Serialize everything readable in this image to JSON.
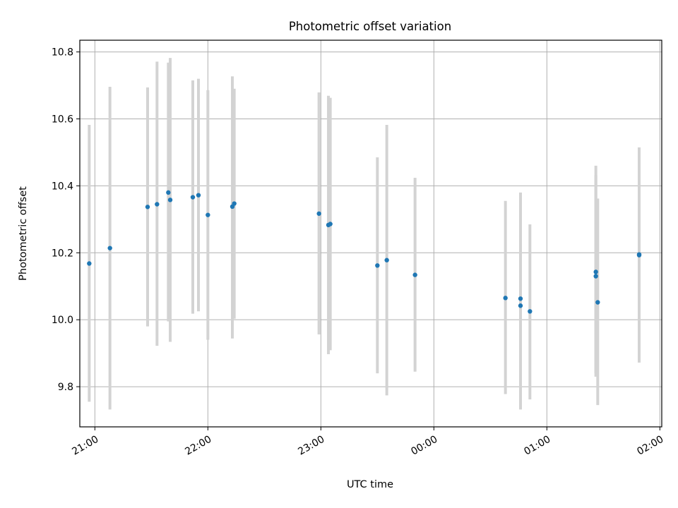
{
  "chart_data": {
    "type": "scatter",
    "title": "Photometric offset variation",
    "xlabel": "UTC time",
    "ylabel": "Photometric offset",
    "grid": true,
    "x_ticks": [
      "21:00",
      "22:00",
      "23:00",
      "00:00",
      "01:00",
      "02:00"
    ],
    "x_tick_values": [
      0,
      60,
      120,
      180,
      240,
      300
    ],
    "y_ticks": [
      "9.8",
      "10.0",
      "10.2",
      "10.4",
      "10.6",
      "10.8"
    ],
    "y_tick_values": [
      9.8,
      10.0,
      10.2,
      10.4,
      10.6,
      10.8
    ],
    "xlim": [
      "20:52",
      "02:01"
    ],
    "ylim": [
      9.68,
      10.835
    ],
    "colors": {
      "points": "#1f77b4",
      "errorbars": "#d3d3d3",
      "grid": "#b0b0b0"
    },
    "series": [
      {
        "points": [
          {
            "x": "20:57",
            "y": 10.168,
            "ylow": 9.755,
            "yhigh": 10.582
          },
          {
            "x": "21:08",
            "y": 10.214,
            "ylow": 9.732,
            "yhigh": 10.696
          },
          {
            "x": "21:28",
            "y": 10.337,
            "ylow": 9.98,
            "yhigh": 10.694
          },
          {
            "x": "21:33",
            "y": 10.345,
            "ylow": 9.922,
            "yhigh": 10.771
          },
          {
            "x": "21:39",
            "y": 10.38,
            "ylow": 9.995,
            "yhigh": 10.768
          },
          {
            "x": "21:40",
            "y": 10.358,
            "ylow": 9.934,
            "yhigh": 10.782
          },
          {
            "x": "21:52",
            "y": 10.366,
            "ylow": 10.018,
            "yhigh": 10.715
          },
          {
            "x": "21:55",
            "y": 10.372,
            "ylow": 10.025,
            "yhigh": 10.72
          },
          {
            "x": "22:00",
            "y": 10.313,
            "ylow": 9.94,
            "yhigh": 10.686
          },
          {
            "x": "22:13",
            "y": 10.338,
            "ylow": 9.944,
            "yhigh": 10.727
          },
          {
            "x": "22:14",
            "y": 10.347,
            "ylow": 10.003,
            "yhigh": 10.69
          },
          {
            "x": "22:59",
            "y": 10.317,
            "ylow": 9.956,
            "yhigh": 10.679
          },
          {
            "x": "23:04",
            "y": 10.283,
            "ylow": 9.897,
            "yhigh": 10.669
          },
          {
            "x": "23:05",
            "y": 10.286,
            "ylow": 9.909,
            "yhigh": 10.663
          },
          {
            "x": "23:30",
            "y": 10.162,
            "ylow": 9.84,
            "yhigh": 10.485
          },
          {
            "x": "23:35",
            "y": 10.178,
            "ylow": 9.774,
            "yhigh": 10.582
          },
          {
            "x": "23:50",
            "y": 10.134,
            "ylow": 9.845,
            "yhigh": 10.424
          },
          {
            "x": "00:38",
            "y": 10.065,
            "ylow": 9.778,
            "yhigh": 10.355
          },
          {
            "x": "00:46",
            "y": 10.063,
            "ylow": 9.76,
            "yhigh": 10.38
          },
          {
            "x": "00:46",
            "y": 10.042,
            "ylow": 9.732,
            "yhigh": 10.353
          },
          {
            "x": "00:51",
            "y": 10.025,
            "ylow": 9.762,
            "yhigh": 10.285
          },
          {
            "x": "01:26",
            "y": 10.143,
            "ylow": 9.83,
            "yhigh": 10.46
          },
          {
            "x": "01:26",
            "y": 10.13,
            "ylow": 9.84,
            "yhigh": 10.432
          },
          {
            "x": "01:27",
            "y": 10.052,
            "ylow": 9.745,
            "yhigh": 10.362
          },
          {
            "x": "01:49",
            "y": 10.195,
            "ylow": 9.872,
            "yhigh": 10.515
          },
          {
            "x": "01:49",
            "y": 10.193,
            "ylow": 9.878,
            "yhigh": 10.51
          }
        ]
      }
    ]
  }
}
